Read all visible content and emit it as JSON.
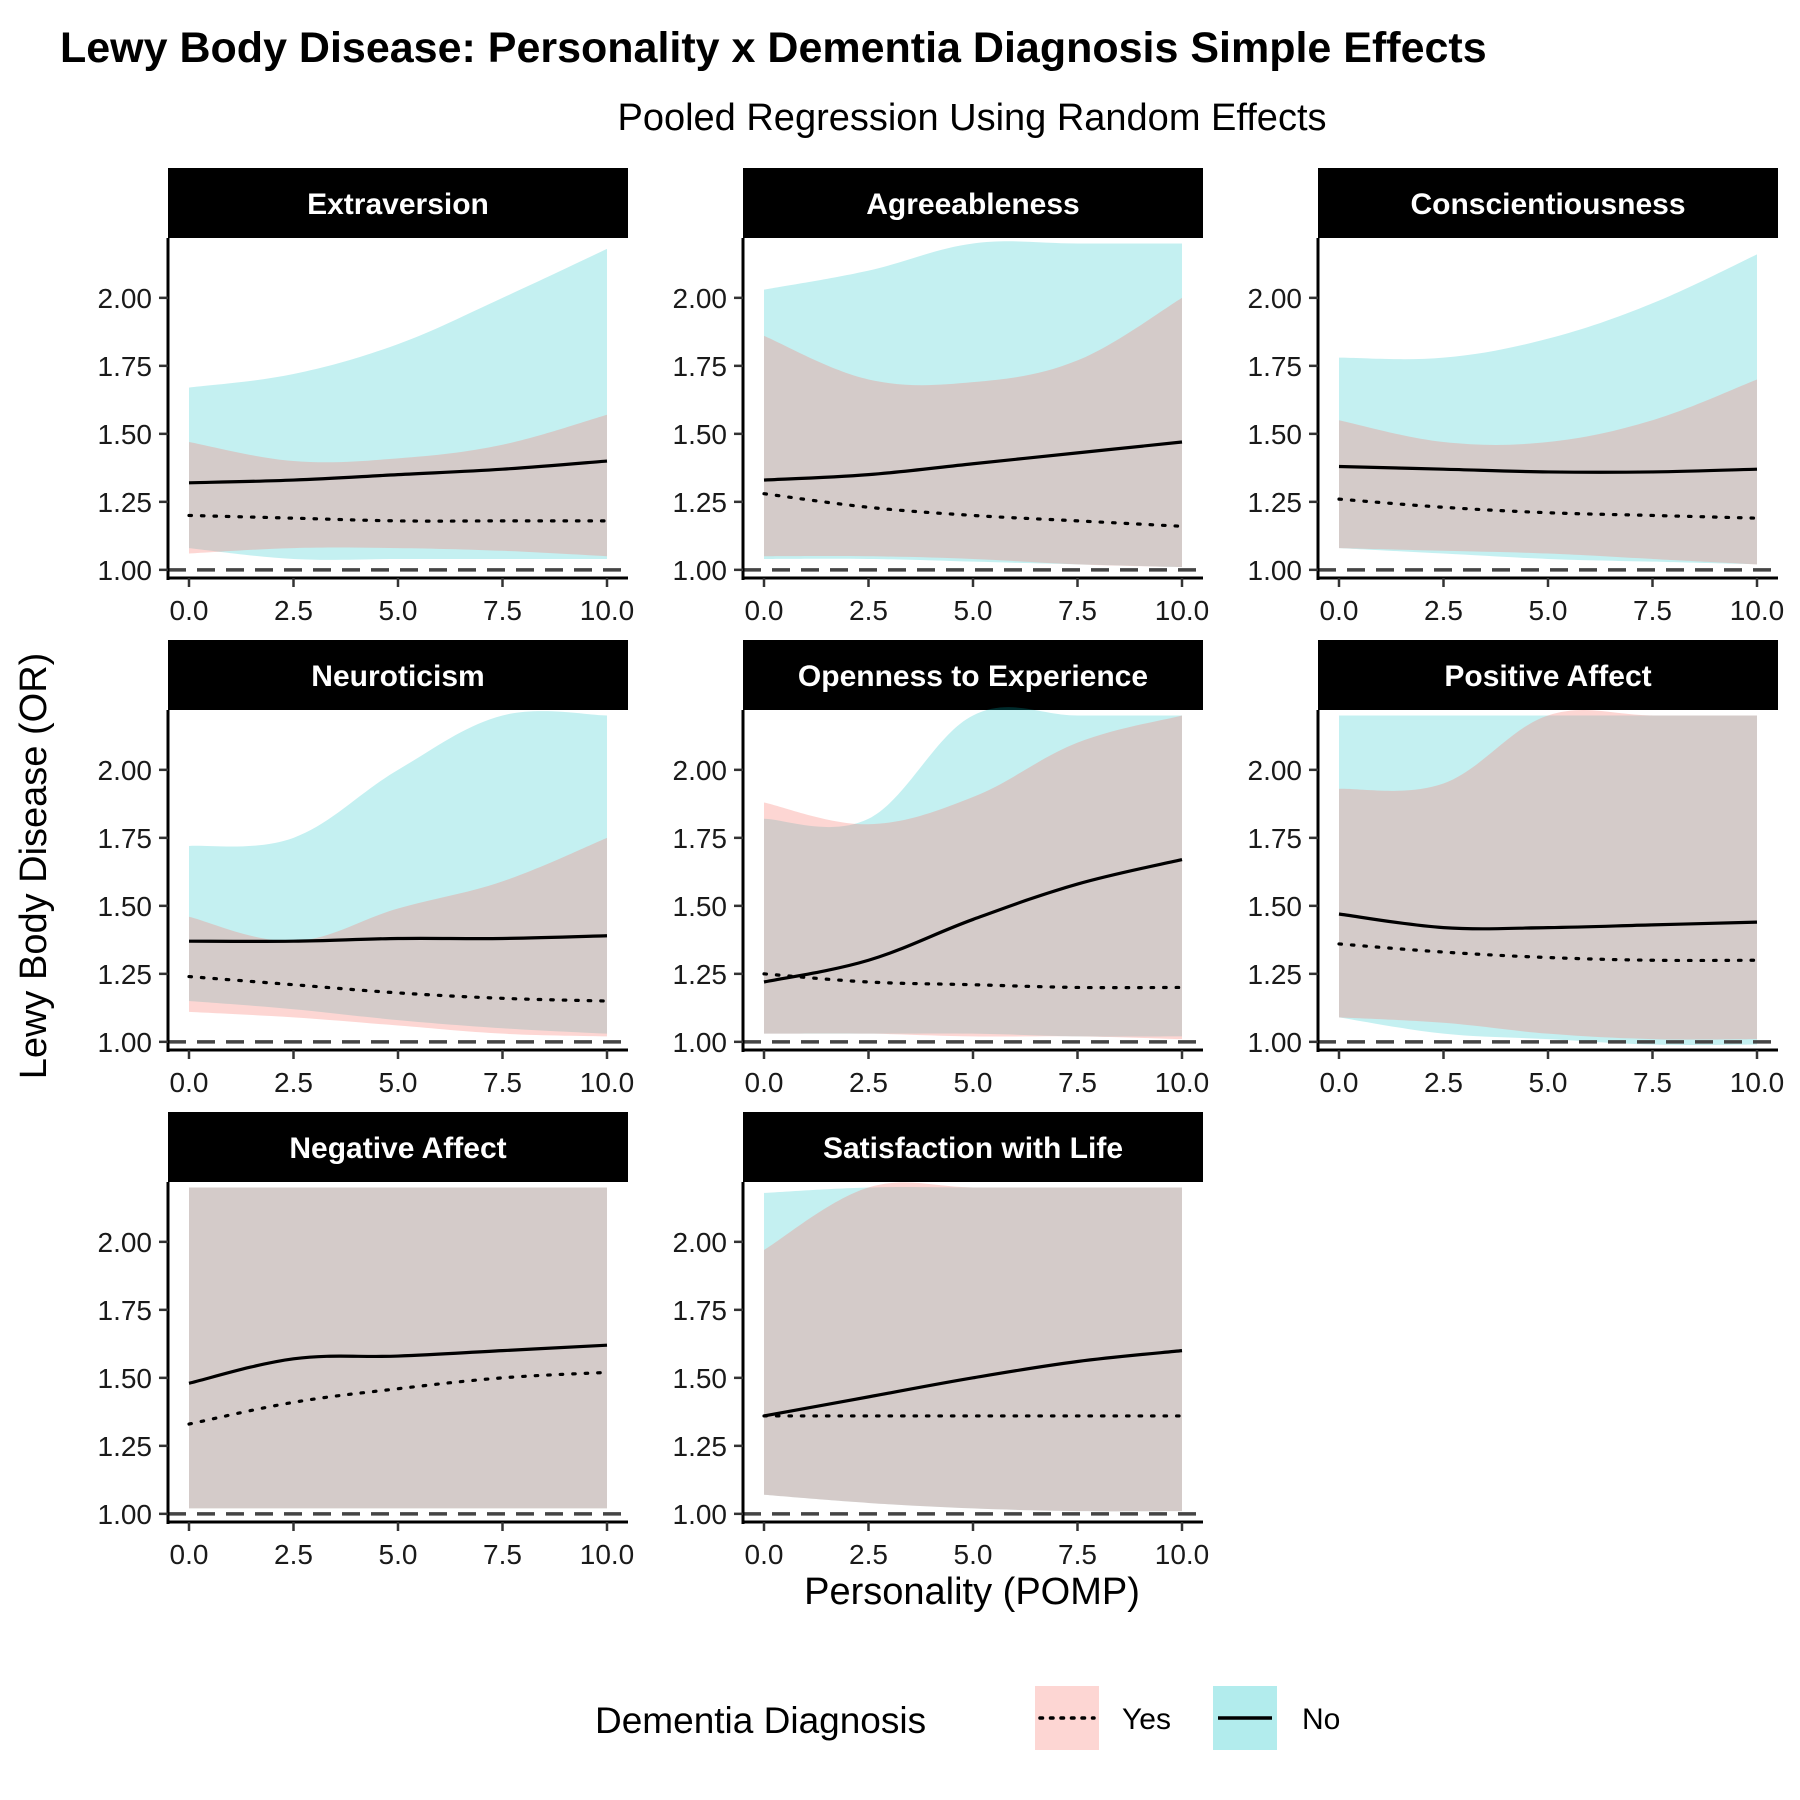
{
  "title": "Lewy Body Disease: Personality x Dementia Diagnosis Simple Effects",
  "subtitle": "Pooled Regression Using Random Effects",
  "colors": {
    "yes_fill": "#F8766D",
    "no_fill": "#00BFC4",
    "overlap_fill": "#C1CECE",
    "line": "#000000",
    "reference": "#444444",
    "strip": "#000000"
  },
  "legend": {
    "title": "Dementia Diagnosis",
    "items": [
      {
        "label": "Yes",
        "linetype": "dotted",
        "fill": "#F8766D"
      },
      {
        "label": "No",
        "linetype": "solid",
        "fill": "#00BFC4"
      }
    ],
    "position": "bottom"
  },
  "chart_data": {
    "type": "line",
    "title": "Lewy Body Disease: Personality x Dementia Diagnosis Simple Effects",
    "subtitle": "Pooled Regression Using Random Effects",
    "xlabel": "Personality (POMP)",
    "ylabel": "Lewy Body Disease (OR)",
    "xlim": [
      0,
      10
    ],
    "x_ticks": [
      "0.0",
      "2.5",
      "5.0",
      "7.5",
      "10.0"
    ],
    "y_ticks": [
      "1.00",
      "1.25",
      "1.50",
      "1.75",
      "2.00",
      "2.25"
    ],
    "reference_line": 1.0,
    "grid": false,
    "x": [
      0,
      2.5,
      5,
      7.5,
      10
    ],
    "panels": [
      {
        "name": "Extraversion",
        "ylim": [
          0.97,
          2.22
        ],
        "y_ticks": [
          "1.00",
          "1.25",
          "1.50",
          "1.75",
          "2.00"
        ],
        "yes": {
          "fit": [
            1.2,
            1.19,
            1.18,
            1.18,
            1.18
          ],
          "lower": [
            1.06,
            1.08,
            1.08,
            1.07,
            1.05
          ],
          "upper": [
            1.47,
            1.4,
            1.41,
            1.46,
            1.57
          ]
        },
        "no": {
          "fit": [
            1.32,
            1.33,
            1.35,
            1.37,
            1.4
          ],
          "lower": [
            1.08,
            1.04,
            1.04,
            1.04,
            1.04
          ],
          "upper": [
            1.67,
            1.72,
            1.83,
            2.0,
            2.18
          ]
        }
      },
      {
        "name": "Agreeableness",
        "ylim": [
          0.97,
          2.22
        ],
        "y_ticks": [
          "1.00",
          "1.25",
          "1.50",
          "1.75",
          "2.00",
          "2.25"
        ],
        "yes": {
          "fit": [
            1.28,
            1.23,
            1.2,
            1.18,
            1.16
          ],
          "lower": [
            1.05,
            1.05,
            1.04,
            1.02,
            1.01
          ],
          "upper": [
            1.86,
            1.7,
            1.69,
            1.77,
            2.0
          ]
        },
        "no": {
          "fit": [
            1.33,
            1.35,
            1.39,
            1.43,
            1.47
          ],
          "lower": [
            1.04,
            1.04,
            1.03,
            1.02,
            1.01
          ],
          "upper": [
            2.03,
            2.1,
            2.2,
            2.2,
            2.2
          ]
        }
      },
      {
        "name": "Conscientiousness",
        "ylim": [
          0.97,
          2.22
        ],
        "y_ticks": [
          "1.00",
          "1.25",
          "1.50",
          "1.75",
          "2.00"
        ],
        "yes": {
          "fit": [
            1.26,
            1.23,
            1.21,
            1.2,
            1.19
          ],
          "lower": [
            1.08,
            1.07,
            1.06,
            1.04,
            1.02
          ],
          "upper": [
            1.55,
            1.47,
            1.47,
            1.55,
            1.7
          ]
        },
        "no": {
          "fit": [
            1.38,
            1.37,
            1.36,
            1.36,
            1.37
          ],
          "lower": [
            1.08,
            1.06,
            1.04,
            1.03,
            1.02
          ],
          "upper": [
            1.78,
            1.78,
            1.85,
            1.98,
            2.16
          ]
        }
      },
      {
        "name": "Neuroticism",
        "ylim": [
          0.97,
          2.22
        ],
        "y_ticks": [
          "1.00",
          "1.25",
          "1.50",
          "1.75",
          "2.00",
          "2.25"
        ],
        "yes": {
          "fit": [
            1.24,
            1.21,
            1.18,
            1.16,
            1.15
          ],
          "lower": [
            1.11,
            1.09,
            1.06,
            1.03,
            1.02
          ],
          "upper": [
            1.46,
            1.37,
            1.49,
            1.59,
            1.75
          ]
        },
        "no": {
          "fit": [
            1.37,
            1.37,
            1.38,
            1.38,
            1.39
          ],
          "lower": [
            1.15,
            1.12,
            1.08,
            1.05,
            1.03
          ],
          "upper": [
            1.72,
            1.75,
            2.0,
            2.2,
            2.2
          ]
        }
      },
      {
        "name": "Openness to Experience",
        "ylim": [
          0.97,
          2.22
        ],
        "y_ticks": [
          "1.00",
          "1.25",
          "1.50",
          "1.75",
          "2.00",
          "2.25"
        ],
        "yes": {
          "fit": [
            1.25,
            1.22,
            1.21,
            1.2,
            1.2
          ],
          "lower": [
            1.03,
            1.03,
            1.02,
            1.02,
            1.01
          ],
          "upper": [
            1.88,
            1.8,
            1.9,
            2.1,
            2.2
          ]
        },
        "no": {
          "fit": [
            1.22,
            1.3,
            1.45,
            1.58,
            1.67
          ],
          "lower": [
            1.03,
            1.03,
            1.03,
            1.02,
            1.02
          ],
          "upper": [
            1.82,
            1.82,
            2.2,
            2.2,
            2.2
          ]
        }
      },
      {
        "name": "Positive Affect",
        "ylim": [
          0.97,
          2.22
        ],
        "y_ticks": [
          "1.00",
          "1.25",
          "1.50",
          "1.75",
          "2.00",
          "2.25"
        ],
        "yes": {
          "fit": [
            1.36,
            1.33,
            1.31,
            1.3,
            1.3
          ],
          "lower": [
            1.09,
            1.07,
            1.03,
            1.01,
            1.01
          ],
          "upper": [
            1.93,
            1.95,
            2.2,
            2.2,
            2.2
          ]
        },
        "no": {
          "fit": [
            1.47,
            1.42,
            1.42,
            1.43,
            1.44
          ],
          "lower": [
            1.09,
            1.03,
            1.01,
            0.99,
            0.99
          ],
          "upper": [
            2.2,
            2.2,
            2.2,
            2.2,
            2.2
          ]
        }
      },
      {
        "name": "Negative Affect",
        "ylim": [
          0.97,
          2.22
        ],
        "y_ticks": [
          "1.00",
          "1.25",
          "1.50",
          "1.75",
          "2.00",
          "2.25"
        ],
        "yes": {
          "fit": [
            1.33,
            1.41,
            1.46,
            1.5,
            1.52
          ],
          "lower": [
            1.02,
            1.02,
            1.02,
            1.02,
            1.02
          ],
          "upper": [
            2.2,
            2.2,
            2.2,
            2.2,
            2.2
          ]
        },
        "no": {
          "fit": [
            1.48,
            1.57,
            1.58,
            1.6,
            1.62
          ],
          "lower": [
            1.02,
            1.02,
            1.02,
            1.02,
            1.02
          ],
          "upper": [
            2.2,
            2.2,
            2.2,
            2.2,
            2.2
          ]
        }
      },
      {
        "name": "Satisfaction with Life",
        "ylim": [
          0.97,
          2.22
        ],
        "y_ticks": [
          "1.00",
          "1.25",
          "1.50",
          "1.75",
          "2.00",
          "2.25"
        ],
        "yes": {
          "fit": [
            1.36,
            1.36,
            1.36,
            1.36,
            1.36
          ],
          "lower": [
            1.07,
            1.04,
            1.02,
            1.01,
            1.01
          ],
          "upper": [
            1.97,
            2.2,
            2.2,
            2.2,
            2.2
          ]
        },
        "no": {
          "fit": [
            1.36,
            1.43,
            1.5,
            1.56,
            1.6
          ],
          "lower": [
            1.07,
            1.04,
            1.02,
            1.01,
            1.01
          ],
          "upper": [
            2.18,
            2.2,
            2.2,
            2.2,
            2.2
          ]
        }
      }
    ]
  }
}
